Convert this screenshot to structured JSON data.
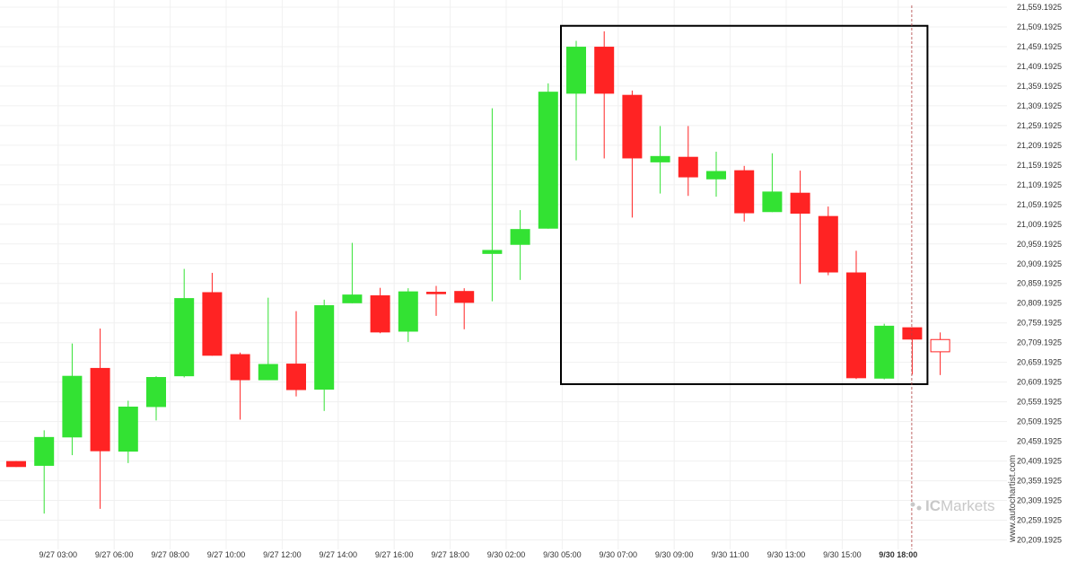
{
  "chart_data": {
    "type": "candlestick",
    "y_range": [
      20184.1925,
      21559.1925
    ],
    "y_tick_labels": [
      "21,559.1925",
      "21,509.1925",
      "21,459.1925",
      "21,409.1925",
      "21,359.1925",
      "21,309.1925",
      "21,259.1925",
      "21,209.1925",
      "21,159.1925",
      "21,109.1925",
      "21,059.1925",
      "21,009.1925",
      "20,959.1925",
      "20,909.1925",
      "20,859.1925",
      "20,809.1925",
      "20,759.1925",
      "20,709.1925",
      "20,659.1925",
      "20,609.1925",
      "20,559.1925",
      "20,509.1925",
      "20,459.1925",
      "20,409.1925",
      "20,359.1925",
      "20,309.1925",
      "20,259.1925",
      "20,209.1925"
    ],
    "y_tick_values": [
      21559.1925,
      21509.1925,
      21459.1925,
      21409.1925,
      21359.1925,
      21309.1925,
      21259.1925,
      21209.1925,
      21159.1925,
      21109.1925,
      21059.1925,
      21009.1925,
      20959.1925,
      20909.1925,
      20859.1925,
      20809.1925,
      20759.1925,
      20709.1925,
      20659.1925,
      20609.1925,
      20559.1925,
      20509.1925,
      20459.1925,
      20409.1925,
      20359.1925,
      20309.1925,
      20259.1925,
      20209.1925
    ],
    "x_tick_labels": [
      {
        "label": "9/27 03:00",
        "index": 1.5
      },
      {
        "label": "9/27 06:00",
        "index": 3.5
      },
      {
        "label": "9/27 08:00",
        "index": 5.5
      },
      {
        "label": "9/27 10:00",
        "index": 7.5
      },
      {
        "label": "9/27 12:00",
        "index": 9.5
      },
      {
        "label": "9/27 14:00",
        "index": 11.5
      },
      {
        "label": "9/27 16:00",
        "index": 13.5
      },
      {
        "label": "9/27 18:00",
        "index": 15.5
      },
      {
        "label": "9/30 02:00",
        "index": 17.5
      },
      {
        "label": "9/30 05:00",
        "index": 19.5
      },
      {
        "label": "9/30 07:00",
        "index": 21.5
      },
      {
        "label": "9/30 09:00",
        "index": 23.5
      },
      {
        "label": "9/30 11:00",
        "index": 25.5
      },
      {
        "label": "9/30 13:00",
        "index": 27.5
      },
      {
        "label": "9/30 15:00",
        "index": 29.5
      },
      {
        "label": "9/30 18:00",
        "index": 31.5,
        "bold": true
      }
    ],
    "candles": [
      {
        "open": 20409,
        "high": 20409,
        "low": 20394,
        "close": 20394
      },
      {
        "open": 20397,
        "high": 20487,
        "low": 20276,
        "close": 20470
      },
      {
        "open": 20469,
        "high": 20707,
        "low": 20424,
        "close": 20625
      },
      {
        "open": 20645,
        "high": 20745,
        "low": 20288,
        "close": 20434
      },
      {
        "open": 20433,
        "high": 20562,
        "low": 20404,
        "close": 20547
      },
      {
        "open": 20546,
        "high": 20624,
        "low": 20512,
        "close": 20622
      },
      {
        "open": 20624,
        "high": 20896,
        "low": 20621,
        "close": 20822
      },
      {
        "open": 20837,
        "high": 20886,
        "low": 20676,
        "close": 20676
      },
      {
        "open": 20680,
        "high": 20684,
        "low": 20514,
        "close": 20614
      },
      {
        "open": 20614,
        "high": 20823,
        "low": 20614,
        "close": 20655
      },
      {
        "open": 20656,
        "high": 20789,
        "low": 20573,
        "close": 20589
      },
      {
        "open": 20590,
        "high": 20818,
        "low": 20536,
        "close": 20804
      },
      {
        "open": 20809,
        "high": 20962,
        "low": 20809,
        "close": 20831
      },
      {
        "open": 20829,
        "high": 20848,
        "low": 20733,
        "close": 20735
      },
      {
        "open": 20737,
        "high": 20847,
        "low": 20711,
        "close": 20839
      },
      {
        "open": 20838,
        "high": 20853,
        "low": 20777,
        "close": 20832
      },
      {
        "open": 20840,
        "high": 20847,
        "low": 20743,
        "close": 20810
      },
      {
        "open": 20934,
        "high": 21303,
        "low": 20814,
        "close": 20944
      },
      {
        "open": 20957,
        "high": 21045,
        "low": 20868,
        "close": 20997
      },
      {
        "open": 20998,
        "high": 21366,
        "low": 20998,
        "close": 21345
      },
      {
        "open": 21340,
        "high": 21474,
        "low": 21171,
        "close": 21459
      },
      {
        "open": 21459,
        "high": 21498,
        "low": 21176,
        "close": 21340
      },
      {
        "open": 21337,
        "high": 21348,
        "low": 21026,
        "close": 21176
      },
      {
        "open": 21166,
        "high": 21258,
        "low": 21087,
        "close": 21182
      },
      {
        "open": 21180,
        "high": 21258,
        "low": 21081,
        "close": 21128
      },
      {
        "open": 21123,
        "high": 21193,
        "low": 21079,
        "close": 21144
      },
      {
        "open": 21146,
        "high": 21157,
        "low": 21016,
        "close": 21037
      },
      {
        "open": 21040,
        "high": 21189,
        "low": 21040,
        "close": 21092
      },
      {
        "open": 21089,
        "high": 21145,
        "low": 20858,
        "close": 21036
      },
      {
        "open": 21030,
        "high": 21054,
        "low": 20880,
        "close": 20887
      },
      {
        "open": 20887,
        "high": 20942,
        "low": 20617,
        "close": 20619
      },
      {
        "open": 20618,
        "high": 20757,
        "low": 20616,
        "close": 20752
      },
      {
        "open": 20748,
        "high": 20748,
        "low": 20628,
        "close": 20717
      },
      {
        "open": 20717,
        "high": 20735,
        "low": 20627,
        "close": 20686,
        "hollow": true
      }
    ],
    "pattern_box": {
      "start_index": 20,
      "end_index": 32,
      "high": 21512,
      "low": 20604
    },
    "current_time_index": 32,
    "colors": {
      "up": "#33e233",
      "down": "#ff2323",
      "grid": "#f0f0f0",
      "box": "#000000",
      "axis_text": "#333333"
    },
    "grid": true
  },
  "watermark": {
    "side_text": "www.autochartist.com",
    "brand_prefix": "IC",
    "brand_name": "Markets"
  }
}
